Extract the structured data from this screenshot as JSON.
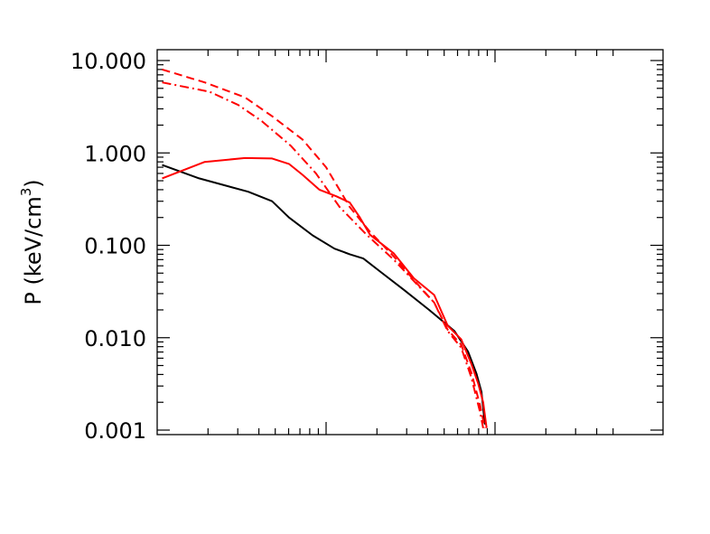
{
  "chart_data": {
    "type": "line",
    "title": "",
    "xlabel": "",
    "ylabel": {
      "prefix": "P  (keV/cm",
      "superscript": "3",
      "suffix": ")"
    },
    "y_scale": "log",
    "ylim": [
      0.001,
      10
    ],
    "y_ticks": [
      {
        "value": 10,
        "label": "10.000"
      },
      {
        "value": 1,
        "label": "1.000"
      },
      {
        "value": 0.1,
        "label": "0.100"
      },
      {
        "value": 0.01,
        "label": "0.010"
      },
      {
        "value": 0.001,
        "label": "0.001"
      }
    ],
    "x_scale": "log",
    "xlim": [
      0.01,
      1
    ],
    "x_major_ticks": [
      0.1
    ],
    "grid": false,
    "series": [
      {
        "style": "solid",
        "color": "#000000",
        "x": [
          0.0107,
          0.0177,
          0.0346,
          0.0479,
          0.0603,
          0.0832,
          0.1122,
          0.138,
          0.166,
          0.2089,
          0.2884,
          0.4074,
          0.5754,
          0.6918,
          0.7762,
          0.8318,
          0.871
        ],
        "y": [
          0.74,
          0.53,
          0.38,
          0.3,
          0.2,
          0.128,
          0.092,
          0.08,
          0.072,
          0.052,
          0.033,
          0.02,
          0.0118,
          0.0071,
          0.0041,
          0.0026,
          0.00115
        ]
      },
      {
        "style": "solid",
        "color": "#ff0000",
        "x": [
          0.0107,
          0.0191,
          0.0331,
          0.0479,
          0.0603,
          0.0724,
          0.0912,
          0.1148,
          0.138,
          0.1585,
          0.182,
          0.2512,
          0.3311,
          0.4365,
          0.5248,
          0.631,
          0.7244,
          0.7943,
          0.8511,
          0.8913
        ],
        "y": [
          0.53,
          0.8,
          0.88,
          0.87,
          0.76,
          0.58,
          0.4,
          0.34,
          0.29,
          0.2,
          0.13,
          0.082,
          0.044,
          0.029,
          0.0135,
          0.0096,
          0.0052,
          0.0032,
          0.002,
          0.00105
        ]
      },
      {
        "style": "dashed",
        "color": "#ff0000",
        "x": [
          0.0107,
          0.0191,
          0.0331,
          0.0479,
          0.0724,
          0.1,
          0.138,
          0.182,
          0.2512,
          0.3311,
          0.4365,
          0.5248,
          0.631,
          0.7244,
          0.8128,
          0.871
        ],
        "y": [
          8.0,
          5.8,
          4.0,
          2.5,
          1.4,
          0.7,
          0.26,
          0.14,
          0.076,
          0.042,
          0.024,
          0.0122,
          0.0084,
          0.0042,
          0.0019,
          0.00105
        ]
      },
      {
        "style": "dashdot",
        "color": "#ff0000",
        "x": [
          0.0107,
          0.0204,
          0.0302,
          0.0417,
          0.0617,
          0.0871,
          0.1202,
          0.1738,
          0.2512,
          0.3311,
          0.4365,
          0.5248,
          0.631,
          0.7244,
          0.8128,
          0.8511
        ],
        "y": [
          5.8,
          4.6,
          3.3,
          2.2,
          1.2,
          0.6,
          0.26,
          0.13,
          0.07,
          0.041,
          0.024,
          0.0118,
          0.0078,
          0.0037,
          0.0016,
          0.00105
        ]
      }
    ]
  }
}
